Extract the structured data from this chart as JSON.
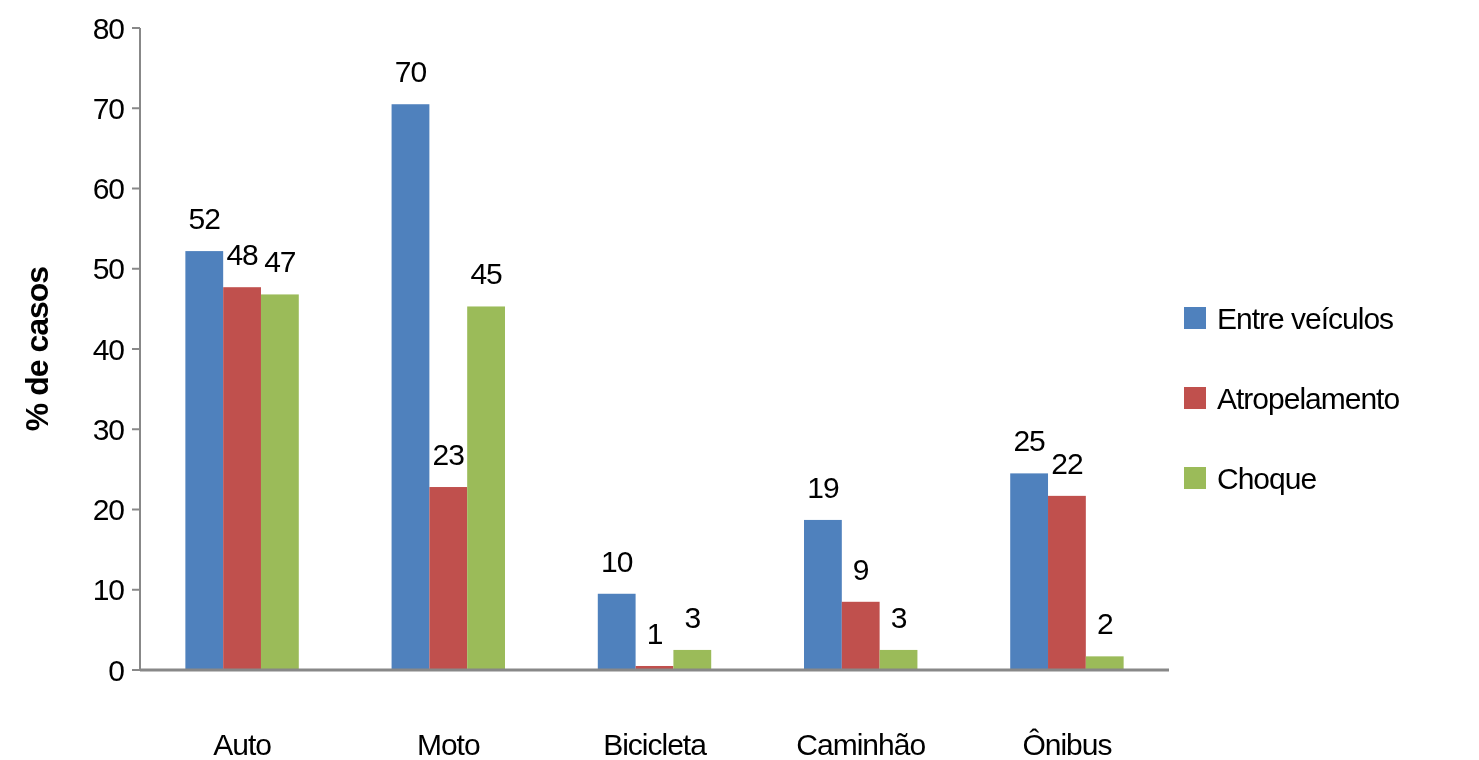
{
  "chart_data": {
    "type": "bar",
    "ylabel": "% de casos",
    "categories": [
      "Auto",
      "Moto",
      "Bicicleta",
      "Caminhão",
      "Ônibus"
    ],
    "series": [
      {
        "name": "Entre veículos",
        "color": "#4f81bd",
        "values": [
          52.2,
          70.5,
          9.5,
          18.7,
          24.5
        ],
        "value_labels": [
          "52",
          "70",
          "10",
          "19",
          "25"
        ]
      },
      {
        "name": "Atropelamento",
        "color": "#c0504d",
        "values": [
          47.7,
          22.8,
          0.5,
          8.5,
          21.7
        ],
        "value_labels": [
          "48",
          "23",
          "1",
          "9",
          "22"
        ]
      },
      {
        "name": "Choque",
        "color": "#9bbb59",
        "values": [
          46.8,
          45.3,
          2.5,
          2.5,
          1.7
        ],
        "value_labels": [
          "47",
          "45",
          "3",
          "3",
          "2"
        ]
      }
    ],
    "ylim": [
      0,
      80
    ],
    "yticks": [
      0,
      10,
      20,
      30,
      40,
      50,
      60,
      70,
      80
    ],
    "grid": false,
    "legend": "right"
  }
}
